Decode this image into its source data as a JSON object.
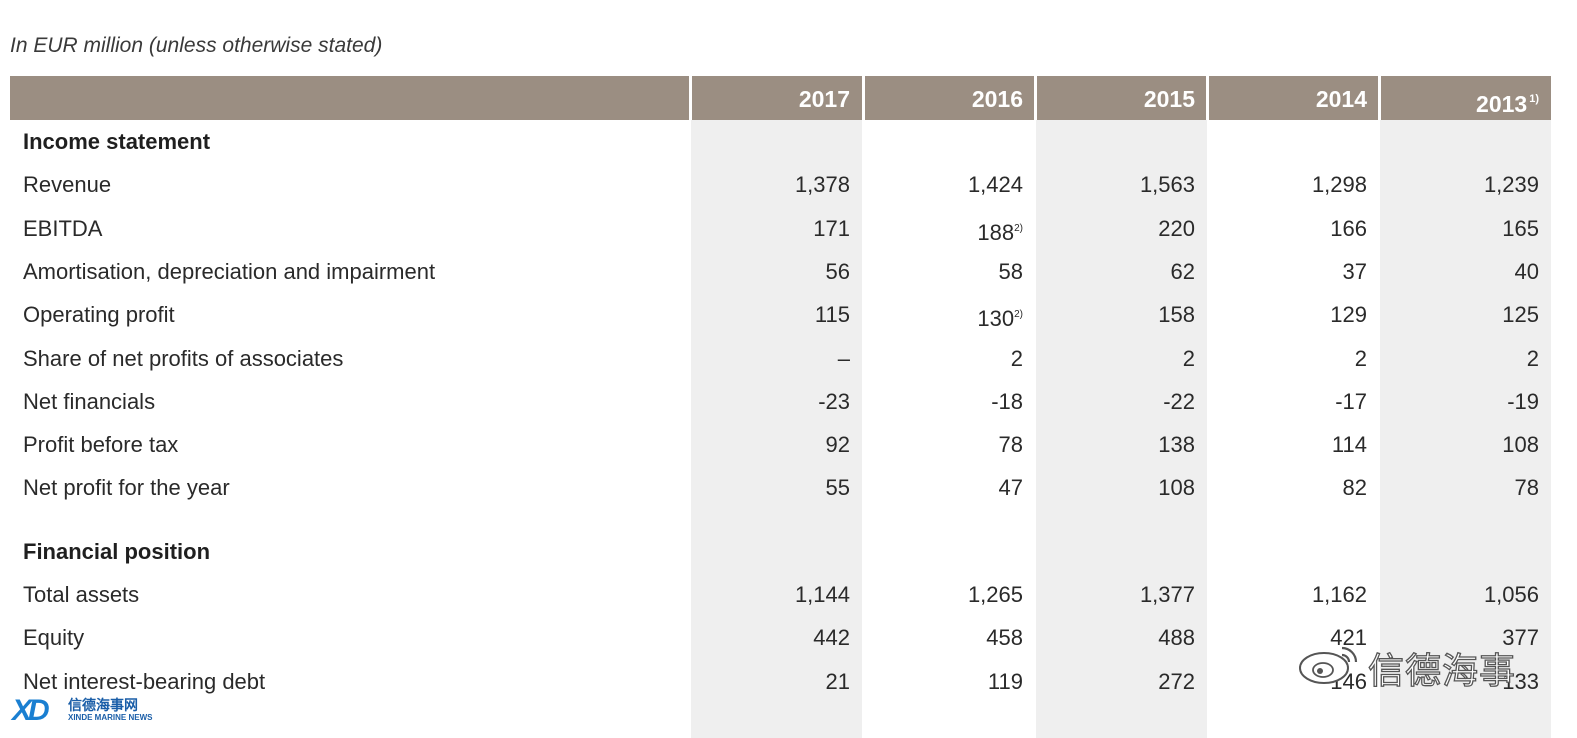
{
  "caption": "In EUR million (unless otherwise stated)",
  "columns": [
    {
      "label": "2017",
      "note": ""
    },
    {
      "label": "2016",
      "note": ""
    },
    {
      "label": "2015",
      "note": ""
    },
    {
      "label": "2014",
      "note": ""
    },
    {
      "label": "2013",
      "note": "1)"
    }
  ],
  "sections": [
    {
      "title": "Income statement",
      "rows": [
        {
          "label": "Revenue",
          "values": [
            "1,378",
            "1,424",
            "1,563",
            "1,298",
            "1,239"
          ],
          "notes": [
            "",
            "",
            "",
            "",
            ""
          ]
        },
        {
          "label": "EBITDA",
          "values": [
            "171",
            "188",
            "220",
            "166",
            "165"
          ],
          "notes": [
            "",
            "2)",
            "",
            "",
            ""
          ]
        },
        {
          "label": "Amortisation, depreciation and impairment",
          "values": [
            "56",
            "58",
            "62",
            "37",
            "40"
          ],
          "notes": [
            "",
            "",
            "",
            "",
            ""
          ]
        },
        {
          "label": "Operating profit",
          "values": [
            "115",
            "130",
            "158",
            "129",
            "125"
          ],
          "notes": [
            "",
            "2)",
            "",
            "",
            ""
          ]
        },
        {
          "label": "Share of net profits of associates",
          "values": [
            "–",
            "2",
            "2",
            "2",
            "2"
          ],
          "notes": [
            "",
            "",
            "",
            "",
            ""
          ]
        },
        {
          "label": "Net financials",
          "values": [
            "-23",
            "-18",
            "-22",
            "-17",
            "-19"
          ],
          "notes": [
            "",
            "",
            "",
            "",
            ""
          ]
        },
        {
          "label": "Profit before tax",
          "values": [
            "92",
            "78",
            "138",
            "114",
            "108"
          ],
          "notes": [
            "",
            "",
            "",
            "",
            ""
          ]
        },
        {
          "label": "Net profit for the year",
          "values": [
            "55",
            "47",
            "108",
            "82",
            "78"
          ],
          "notes": [
            "",
            "",
            "",
            "",
            ""
          ]
        }
      ]
    },
    {
      "title": "Financial position",
      "rows": [
        {
          "label": "Total assets",
          "values": [
            "1,144",
            "1,265",
            "1,377",
            "1,162",
            "1,056"
          ],
          "notes": [
            "",
            "",
            "",
            "",
            ""
          ]
        },
        {
          "label": "Equity",
          "values": [
            "442",
            "458",
            "488",
            "421",
            "377"
          ],
          "notes": [
            "",
            "",
            "",
            "",
            ""
          ]
        },
        {
          "label": "Net interest-bearing debt",
          "values": [
            "21",
            "119",
            "272",
            "146",
            "133"
          ],
          "notes": [
            "",
            "",
            "",
            "",
            ""
          ]
        }
      ]
    }
  ],
  "watermark": {
    "text": "信德海事",
    "logo_mark": "XD",
    "logo_cn": "信德海事网",
    "logo_en": "XINDE MARINE NEWS",
    "icon": "weibo-icon"
  },
  "colors": {
    "header_bg": "#9b8e82",
    "column_shade": "#efefef",
    "logo_blue": "#1a7fd1"
  }
}
